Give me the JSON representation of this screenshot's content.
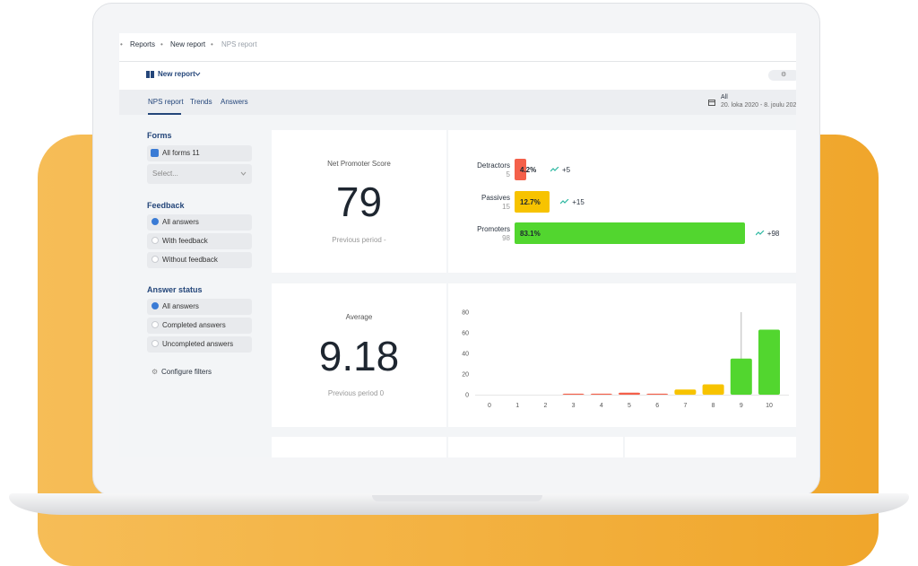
{
  "breadcrumb": [
    "Reports",
    "New report",
    "NPS report"
  ],
  "header": {
    "title": "New report"
  },
  "tabs": [
    "NPS report",
    "Trends",
    "Answers"
  ],
  "date_filter": {
    "label": "All",
    "range": "20. loka 2020 - 8. joulu 202"
  },
  "sidebar": {
    "forms": {
      "title": "Forms",
      "all_forms": "All forms 11",
      "select": "Select..."
    },
    "feedback": {
      "title": "Feedback",
      "options": [
        "All answers",
        "With feedback",
        "Without feedback"
      ]
    },
    "answer_status": {
      "title": "Answer status",
      "options": [
        "All answers",
        "Completed answers",
        "Uncompleted answers"
      ]
    },
    "configure": "Configure filters"
  },
  "nps_card": {
    "title": "Net Promoter Score",
    "score": 79,
    "previous": "Previous period -"
  },
  "nps_breakdown": [
    {
      "name": "Detractors",
      "count": 5,
      "percent": 4.2,
      "percent_label": "4.2%",
      "change": "+5",
      "color": "#f4604a"
    },
    {
      "name": "Passives",
      "count": 15,
      "percent": 12.7,
      "percent_label": "12.7%",
      "change": "+15",
      "color": "#f7c300"
    },
    {
      "name": "Promoters",
      "count": 98,
      "percent": 83.1,
      "percent_label": "83.1%",
      "change": "+98",
      "color": "#52d62f"
    }
  ],
  "average_card": {
    "title": "Average",
    "value": 9.18,
    "previous": "Previous period 0"
  },
  "chart_data": {
    "type": "bar",
    "categories": [
      "0",
      "1",
      "2",
      "3",
      "4",
      "5",
      "6",
      "7",
      "8",
      "9",
      "10"
    ],
    "values": [
      0,
      0,
      0,
      1,
      1,
      2,
      1,
      5,
      10,
      35,
      63
    ],
    "colors": [
      "#f4604a",
      "#f4604a",
      "#f4604a",
      "#f4604a",
      "#f4604a",
      "#f4604a",
      "#f4604a",
      "#f7c300",
      "#f7c300",
      "#52d62f",
      "#52d62f"
    ],
    "ylim": [
      0,
      80
    ],
    "yticks": [
      0,
      20,
      40,
      60,
      80
    ],
    "grid": false
  }
}
